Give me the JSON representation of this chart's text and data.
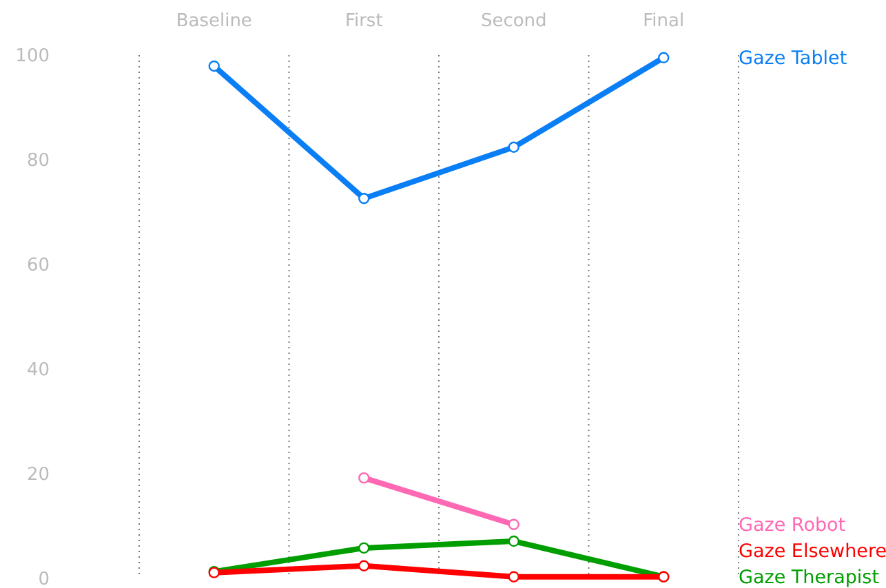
{
  "chart_data": {
    "type": "line",
    "categories": [
      "Baseline",
      "First",
      "Second",
      "Final"
    ],
    "ylim": [
      0,
      100
    ],
    "yticks": [
      0,
      20,
      40,
      60,
      80,
      100
    ],
    "grid": "x",
    "marker": "circle",
    "legend": false,
    "series": [
      {
        "name": "Gaze Tablet",
        "color": "#0a7ff5",
        "values": [
          97.9,
          72.6,
          82.4,
          99.5
        ]
      },
      {
        "name": "Gaze Robot",
        "color": "#ff69b4",
        "values": [
          null,
          19.2,
          10.3,
          null
        ]
      },
      {
        "name": "Gaze Therapist",
        "color": "#009e00",
        "values": [
          1.3,
          5.8,
          7.1,
          0.3
        ]
      },
      {
        "name": "Gaze Elsewhere",
        "color": "#ff0000",
        "values": [
          1.1,
          2.4,
          0.3,
          0.3
        ]
      }
    ]
  }
}
